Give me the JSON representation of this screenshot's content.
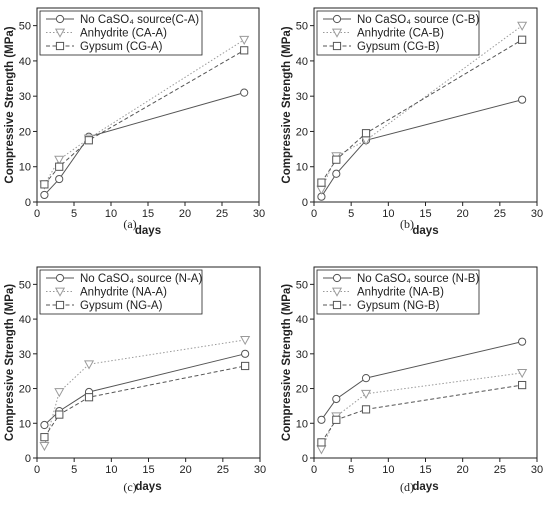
{
  "chart_data": [
    {
      "type": "line",
      "panel_label": "(a)",
      "xlabel": "days",
      "ylabel": "Compressive Strength (MPa)",
      "xlim": [
        0,
        30
      ],
      "ylim": [
        0,
        55
      ],
      "xticks": [
        0,
        5,
        10,
        15,
        20,
        25,
        30
      ],
      "yticks": [
        0,
        10,
        20,
        30,
        40,
        50
      ],
      "legend_position": "top-left",
      "series": [
        {
          "name": "No CaSO₄ source(C-A)",
          "marker": "circle",
          "line": "solid",
          "color": "#555555",
          "x": [
            1,
            3,
            7,
            28
          ],
          "y": [
            2.0,
            6.5,
            18.5,
            31.0
          ]
        },
        {
          "name": "Anhydrite (CA-A)",
          "marker": "triangle-down",
          "line": "dotted",
          "color": "#9a9a9a",
          "x": [
            1,
            3,
            7,
            28
          ],
          "y": [
            5.0,
            12.0,
            18.0,
            46.0
          ]
        },
        {
          "name": "Gypsum (CG-A)",
          "marker": "square",
          "line": "dashed",
          "color": "#555555",
          "x": [
            1,
            3,
            7,
            28
          ],
          "y": [
            5.0,
            10.0,
            17.5,
            43.0
          ]
        }
      ]
    },
    {
      "type": "line",
      "panel_label": "(b)",
      "xlabel": "days",
      "ylabel": "Compressive Strength (MPa)",
      "xlim": [
        0,
        30
      ],
      "ylim": [
        0,
        55
      ],
      "xticks": [
        0,
        5,
        10,
        15,
        20,
        25,
        30
      ],
      "yticks": [
        0,
        10,
        20,
        30,
        40,
        50
      ],
      "legend_position": "top-left",
      "series": [
        {
          "name": "No CaSO₄ source (C-B)",
          "marker": "circle",
          "line": "solid",
          "color": "#555555",
          "x": [
            1,
            3,
            7,
            28
          ],
          "y": [
            1.5,
            8.0,
            17.5,
            29.0
          ]
        },
        {
          "name": "Anhydrite (CA-B)",
          "marker": "triangle-down",
          "line": "dotted",
          "color": "#9a9a9a",
          "x": [
            1,
            3,
            7,
            28
          ],
          "y": [
            3.5,
            13.0,
            17.5,
            50.0
          ]
        },
        {
          "name": "Gypsum (CG-B)",
          "marker": "square",
          "line": "dashed",
          "color": "#555555",
          "x": [
            1,
            3,
            7,
            28
          ],
          "y": [
            5.5,
            12.0,
            19.5,
            46.0
          ]
        }
      ]
    },
    {
      "type": "line",
      "panel_label": "(c)",
      "xlabel": "days",
      "ylabel": "Compressive Strength (MPa)",
      "xlim": [
        0,
        30
      ],
      "ylim": [
        0,
        55
      ],
      "xticks": [
        0,
        5,
        10,
        15,
        20,
        25,
        30
      ],
      "yticks": [
        0,
        10,
        20,
        30,
        40,
        50
      ],
      "legend_position": "top-left",
      "series": [
        {
          "name": "No CaSO₄ source (N-A)",
          "marker": "circle",
          "line": "solid",
          "color": "#555555",
          "x": [
            1,
            3,
            7,
            28
          ],
          "y": [
            9.5,
            13.5,
            19.0,
            30.0
          ]
        },
        {
          "name": "Anhydrite (NA-A)",
          "marker": "triangle-down",
          "line": "dotted",
          "color": "#9a9a9a",
          "x": [
            1,
            3,
            7,
            28
          ],
          "y": [
            3.5,
            19.0,
            27.0,
            34.0
          ]
        },
        {
          "name": "Gypsum (NG-A)",
          "marker": "square",
          "line": "dashed",
          "color": "#555555",
          "x": [
            1,
            3,
            7,
            28
          ],
          "y": [
            6.0,
            12.5,
            17.5,
            26.5
          ]
        }
      ]
    },
    {
      "type": "line",
      "panel_label": "(d)",
      "xlabel": "days",
      "ylabel": "Compressive Strength (MPa)",
      "xlim": [
        0,
        30
      ],
      "ylim": [
        0,
        55
      ],
      "xticks": [
        0,
        5,
        10,
        15,
        20,
        25,
        30
      ],
      "yticks": [
        0,
        10,
        20,
        30,
        40,
        50
      ],
      "legend_position": "top-left",
      "series": [
        {
          "name": "No CaSO₄ source (N-B)",
          "marker": "circle",
          "line": "solid",
          "color": "#555555",
          "x": [
            1,
            3,
            7,
            28
          ],
          "y": [
            11.0,
            17.0,
            23.0,
            33.5
          ]
        },
        {
          "name": "Anhydrite (NA-B)",
          "marker": "triangle-down",
          "line": "dotted",
          "color": "#9a9a9a",
          "x": [
            1,
            3,
            7,
            28
          ],
          "y": [
            2.5,
            12.0,
            18.5,
            24.5
          ]
        },
        {
          "name": "Gypsum (NG-B)",
          "marker": "square",
          "line": "dashed",
          "color": "#555555",
          "x": [
            1,
            3,
            7,
            28
          ],
          "y": [
            4.5,
            11.0,
            14.0,
            21.0
          ]
        }
      ]
    }
  ]
}
